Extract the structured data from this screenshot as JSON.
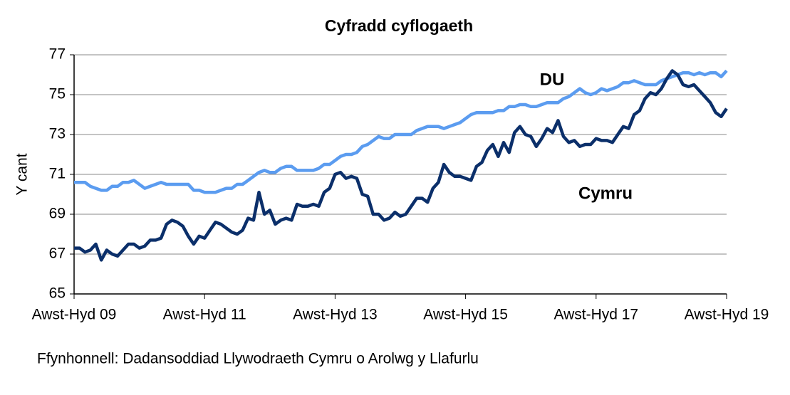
{
  "chart_data": {
    "type": "line",
    "title": "Cyfradd cyflogaeth",
    "y_label": "Y cant",
    "source": "Ffynhonnell: Dadansoddiad Llywodraeth Cymru o Arolwg y Llafurlu",
    "categories": [
      "Awst-Hyd 09",
      null,
      null,
      null,
      null,
      null,
      null,
      null,
      null,
      null,
      null,
      null,
      null,
      null,
      null,
      null,
      null,
      null,
      null,
      null,
      null,
      null,
      null,
      null,
      "Awst-Hyd 11",
      null,
      null,
      null,
      null,
      null,
      null,
      null,
      null,
      null,
      null,
      null,
      null,
      null,
      null,
      null,
      null,
      null,
      null,
      null,
      null,
      null,
      null,
      null,
      "Awst-Hyd 13",
      null,
      null,
      null,
      null,
      null,
      null,
      null,
      null,
      null,
      null,
      null,
      null,
      null,
      null,
      null,
      null,
      null,
      null,
      null,
      null,
      null,
      null,
      null,
      "Awst-Hyd 15",
      null,
      null,
      null,
      null,
      null,
      null,
      null,
      null,
      null,
      null,
      null,
      null,
      null,
      null,
      null,
      null,
      null,
      null,
      null,
      null,
      null,
      null,
      null,
      "Awst-Hyd 17",
      null,
      null,
      null,
      null,
      null,
      null,
      null,
      null,
      null,
      null,
      null,
      null,
      null,
      null,
      null,
      null,
      null,
      null,
      null,
      null,
      null,
      null,
      null,
      "Awst-Hyd 19"
    ],
    "series": [
      {
        "name": "DU",
        "color": "#5b9cf0",
        "values": [
          70.6,
          70.6,
          70.6,
          70.4,
          70.3,
          70.2,
          70.2,
          70.4,
          70.4,
          70.6,
          70.6,
          70.7,
          70.5,
          70.3,
          70.4,
          70.5,
          70.6,
          70.5,
          70.5,
          70.5,
          70.5,
          70.5,
          70.2,
          70.2,
          70.1,
          70.1,
          70.1,
          70.2,
          70.3,
          70.3,
          70.5,
          70.5,
          70.7,
          70.9,
          71.1,
          71.2,
          71.1,
          71.1,
          71.3,
          71.4,
          71.4,
          71.2,
          71.2,
          71.2,
          71.2,
          71.3,
          71.5,
          71.5,
          71.7,
          71.9,
          72.0,
          72.0,
          72.1,
          72.4,
          72.5,
          72.7,
          72.9,
          72.8,
          72.8,
          73.0,
          73.0,
          73.0,
          73.0,
          73.2,
          73.3,
          73.4,
          73.4,
          73.4,
          73.3,
          73.4,
          73.5,
          73.6,
          73.8,
          74.0,
          74.1,
          74.1,
          74.1,
          74.1,
          74.2,
          74.2,
          74.4,
          74.4,
          74.5,
          74.5,
          74.4,
          74.4,
          74.5,
          74.6,
          74.6,
          74.6,
          74.8,
          74.9,
          75.1,
          75.3,
          75.1,
          75.0,
          75.1,
          75.3,
          75.2,
          75.3,
          75.4,
          75.6,
          75.6,
          75.7,
          75.6,
          75.5,
          75.5,
          75.5,
          75.7,
          75.8,
          75.9,
          76.0,
          76.1,
          76.1,
          76.0,
          76.1,
          76.0,
          76.1,
          76.1,
          75.9,
          76.2
        ]
      },
      {
        "name": "Cymru",
        "color": "#0b2f6a",
        "values": [
          67.3,
          67.3,
          67.1,
          67.2,
          67.5,
          66.7,
          67.2,
          67.0,
          66.9,
          67.2,
          67.5,
          67.5,
          67.3,
          67.4,
          67.7,
          67.7,
          67.8,
          68.5,
          68.7,
          68.6,
          68.4,
          67.9,
          67.5,
          67.9,
          67.8,
          68.2,
          68.6,
          68.5,
          68.3,
          68.1,
          68.0,
          68.2,
          68.8,
          68.7,
          70.1,
          69.0,
          69.2,
          68.5,
          68.7,
          68.8,
          68.7,
          69.5,
          69.4,
          69.4,
          69.5,
          69.4,
          70.1,
          70.3,
          71.0,
          71.1,
          70.8,
          70.9,
          70.8,
          70.0,
          69.9,
          69.0,
          69.0,
          68.7,
          68.8,
          69.1,
          68.9,
          69.0,
          69.4,
          69.8,
          69.8,
          69.6,
          70.3,
          70.6,
          71.5,
          71.1,
          70.9,
          70.9,
          70.8,
          70.7,
          71.4,
          71.6,
          72.2,
          72.5,
          71.9,
          72.6,
          72.1,
          73.1,
          73.4,
          73.0,
          72.9,
          72.4,
          72.8,
          73.3,
          73.1,
          73.7,
          72.9,
          72.6,
          72.7,
          72.4,
          72.5,
          72.5,
          72.8,
          72.7,
          72.7,
          72.6,
          73.0,
          73.4,
          73.3,
          74.0,
          74.2,
          74.8,
          75.1,
          75.0,
          75.3,
          75.8,
          76.2,
          76.0,
          75.5,
          75.4,
          75.5,
          75.2,
          74.9,
          74.6,
          74.1,
          73.9,
          74.3
        ]
      }
    ],
    "ylim": [
      65,
      77
    ],
    "yticks": [
      65,
      67,
      69,
      71,
      73,
      75,
      77
    ],
    "grid": true
  }
}
